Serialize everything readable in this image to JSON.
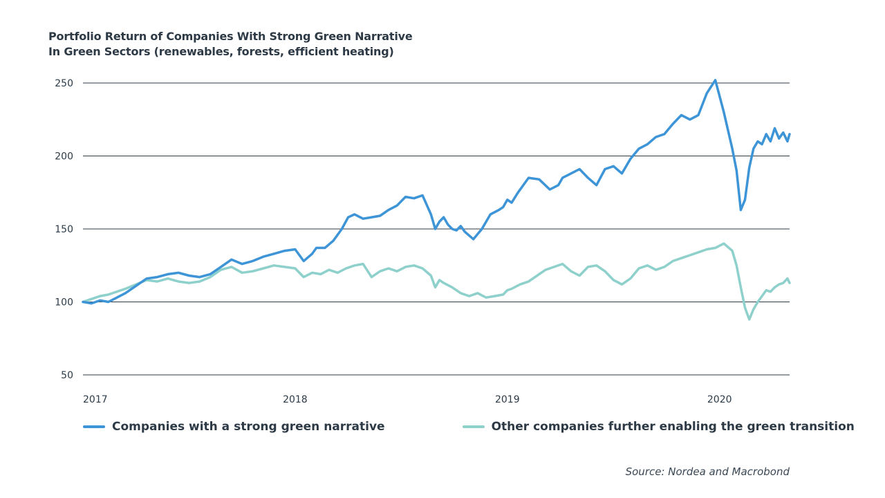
{
  "chart_data": {
    "type": "line",
    "title_lines": [
      "Portfolio Return of Companies With Strong Green Narrative",
      "In Green Sectors (renewables, forests, efficient heating)"
    ],
    "xlabel": "",
    "ylabel": "",
    "x_ticks": [
      {
        "label": "2017",
        "x": 2017.0
      },
      {
        "label": "2018",
        "x": 2018.0
      },
      {
        "label": "2019",
        "x": 2019.0
      },
      {
        "label": "2020",
        "x": 2020.0
      }
    ],
    "xlim": [
      2017.0,
      2020.33
    ],
    "ylim": [
      50,
      255
    ],
    "y_ticks": [
      50,
      100,
      150,
      200,
      250
    ],
    "grid": "horizontal",
    "legend_position": "bottom",
    "series": [
      {
        "name": "Companies with a strong green narrative",
        "color": "#3d94d6",
        "x": [
          2017.0,
          2017.04,
          2017.08,
          2017.12,
          2017.16,
          2017.2,
          2017.25,
          2017.3,
          2017.35,
          2017.4,
          2017.45,
          2017.5,
          2017.55,
          2017.6,
          2017.65,
          2017.7,
          2017.75,
          2017.8,
          2017.85,
          2017.9,
          2017.95,
          2018.0,
          2018.04,
          2018.08,
          2018.1,
          2018.14,
          2018.18,
          2018.22,
          2018.25,
          2018.28,
          2018.32,
          2018.36,
          2018.4,
          2018.44,
          2018.48,
          2018.52,
          2018.56,
          2018.6,
          2018.64,
          2018.66,
          2018.68,
          2018.7,
          2018.72,
          2018.74,
          2018.76,
          2018.78,
          2018.8,
          2018.84,
          2018.88,
          2018.92,
          2018.96,
          2018.98,
          2019.0,
          2019.02,
          2019.05,
          2019.1,
          2019.15,
          2019.2,
          2019.24,
          2019.26,
          2019.3,
          2019.34,
          2019.38,
          2019.42,
          2019.46,
          2019.5,
          2019.54,
          2019.58,
          2019.62,
          2019.66,
          2019.7,
          2019.74,
          2019.78,
          2019.82,
          2019.86,
          2019.9,
          2019.94,
          2019.98,
          2020.02,
          2020.06,
          2020.08,
          2020.1,
          2020.12,
          2020.14,
          2020.16,
          2020.18,
          2020.2,
          2020.22,
          2020.24,
          2020.26,
          2020.28,
          2020.3,
          2020.32,
          2020.33
        ],
        "values": [
          100,
          99,
          101,
          100,
          103,
          106,
          111,
          116,
          117,
          119,
          120,
          118,
          117,
          119,
          124,
          129,
          126,
          128,
          131,
          133,
          135,
          136,
          128,
          133,
          137,
          137,
          142,
          150,
          158,
          160,
          157,
          158,
          159,
          163,
          166,
          172,
          171,
          173,
          160,
          150,
          155,
          158,
          153,
          150,
          149,
          152,
          148,
          143,
          150,
          160,
          163,
          165,
          170,
          168,
          175,
          185,
          184,
          177,
          180,
          185,
          188,
          191,
          185,
          180,
          191,
          193,
          188,
          198,
          205,
          208,
          213,
          215,
          222,
          228,
          225,
          228,
          243,
          252,
          230,
          205,
          190,
          163,
          170,
          192,
          205,
          210,
          208,
          215,
          210,
          219,
          212,
          216,
          210,
          215
        ]
      },
      {
        "name": "Other companies further enabling the green transition",
        "color": "#8ed0cb",
        "x": [
          2017.0,
          2017.04,
          2017.08,
          2017.12,
          2017.16,
          2017.2,
          2017.25,
          2017.3,
          2017.35,
          2017.4,
          2017.45,
          2017.5,
          2017.55,
          2017.6,
          2017.65,
          2017.7,
          2017.75,
          2017.8,
          2017.85,
          2017.9,
          2017.95,
          2018.0,
          2018.04,
          2018.08,
          2018.12,
          2018.16,
          2018.2,
          2018.24,
          2018.28,
          2018.32,
          2018.36,
          2018.4,
          2018.44,
          2018.48,
          2018.52,
          2018.56,
          2018.6,
          2018.64,
          2018.66,
          2018.68,
          2018.7,
          2018.74,
          2018.78,
          2018.82,
          2018.86,
          2018.9,
          2018.94,
          2018.98,
          2019.0,
          2019.02,
          2019.06,
          2019.1,
          2019.14,
          2019.18,
          2019.22,
          2019.26,
          2019.3,
          2019.34,
          2019.38,
          2019.42,
          2019.46,
          2019.5,
          2019.54,
          2019.58,
          2019.62,
          2019.66,
          2019.7,
          2019.74,
          2019.78,
          2019.82,
          2019.86,
          2019.9,
          2019.94,
          2019.98,
          2020.02,
          2020.06,
          2020.08,
          2020.1,
          2020.12,
          2020.14,
          2020.16,
          2020.18,
          2020.2,
          2020.22,
          2020.24,
          2020.26,
          2020.28,
          2020.3,
          2020.32,
          2020.33
        ],
        "values": [
          100,
          102,
          104,
          105,
          107,
          109,
          112,
          115,
          114,
          116,
          114,
          113,
          114,
          117,
          122,
          124,
          120,
          121,
          123,
          125,
          124,
          123,
          117,
          120,
          119,
          122,
          120,
          123,
          125,
          126,
          117,
          121,
          123,
          121,
          124,
          125,
          123,
          118,
          110,
          115,
          113,
          110,
          106,
          104,
          106,
          103,
          104,
          105,
          108,
          109,
          112,
          114,
          118,
          122,
          124,
          126,
          121,
          118,
          124,
          125,
          121,
          115,
          112,
          116,
          123,
          125,
          122,
          124,
          128,
          130,
          132,
          134,
          136,
          137,
          140,
          135,
          125,
          110,
          96,
          88,
          95,
          100,
          104,
          108,
          107,
          110,
          112,
          113,
          116,
          113
        ]
      }
    ],
    "source": "Source: Nordea and Macrobond"
  }
}
